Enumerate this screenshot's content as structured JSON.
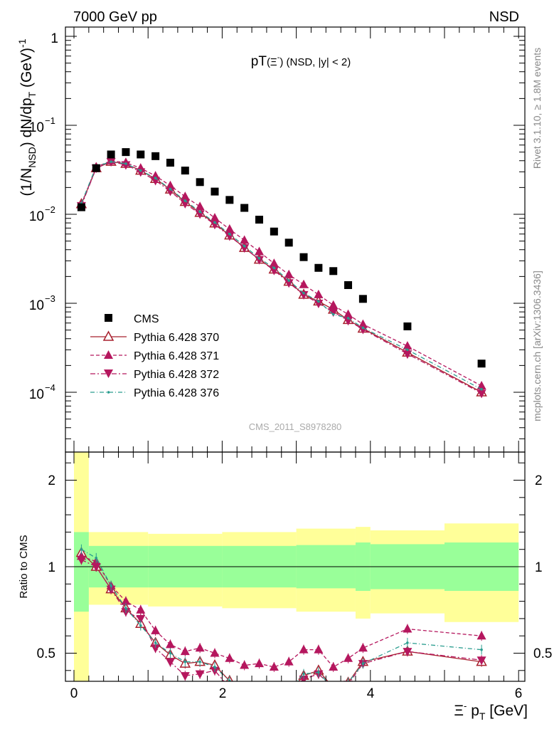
{
  "header": {
    "left": "7000 GeV pp",
    "right": "NSD"
  },
  "side_text": {
    "rivet": "Rivet 3.1.10, ≥ 1.8M events",
    "source": "mcplots.cern.ch [arXiv:1306.3436]"
  },
  "watermark": "CMS_2011_S8978280",
  "chart_data": [
    {
      "type": "scatter",
      "title": "pT(Ξ⁻) (NSD, |y| < 2)",
      "ylabel": "(1/N_NSD) dN/dp_T (GeV)^-1",
      "xlabel": "Ξ⁻ p_T [GeV]",
      "xlim": [
        -0.1,
        6.15
      ],
      "ylim": [
        2e-05,
        1.6
      ],
      "yscale": "log",
      "yticklabels": [
        "10^-4",
        "10^-3",
        "10^-2",
        "10^-1",
        "1"
      ],
      "legend": {
        "position": "left-middle",
        "entries": [
          "CMS",
          "Pythia 6.428 370",
          "Pythia 6.428 371",
          "Pythia 6.428 372",
          "Pythia 6.428 376"
        ]
      },
      "series": [
        {
          "name": "CMS",
          "color": "#000000",
          "marker": "square",
          "x": [
            0.1,
            0.3,
            0.5,
            0.7,
            0.9,
            1.1,
            1.3,
            1.5,
            1.7,
            1.9,
            2.1,
            2.3,
            2.5,
            2.7,
            2.9,
            3.1,
            3.3,
            3.5,
            3.7,
            3.9,
            4.5,
            5.5
          ],
          "y": [
            0.012,
            0.033,
            0.047,
            0.05,
            0.047,
            0.045,
            0.038,
            0.031,
            0.023,
            0.018,
            0.0145,
            0.0118,
            0.0087,
            0.0064,
            0.0048,
            0.0033,
            0.0025,
            0.0023,
            0.0016,
            0.00112,
            0.00055,
            0.00021
          ]
        },
        {
          "name": "Pythia 6.428 370",
          "color": "#a8202e",
          "marker": "triangle-open",
          "dash": "",
          "x": [
            0.1,
            0.3,
            0.5,
            0.7,
            0.9,
            1.1,
            1.3,
            1.5,
            1.7,
            1.9,
            2.1,
            2.3,
            2.5,
            2.7,
            2.9,
            3.1,
            3.3,
            3.5,
            3.7,
            3.9,
            4.5,
            5.5
          ],
          "y": [
            0.013,
            0.033,
            0.039,
            0.037,
            0.031,
            0.025,
            0.019,
            0.0138,
            0.0104,
            0.0079,
            0.0058,
            0.0042,
            0.0031,
            0.0024,
            0.00175,
            0.00125,
            0.00105,
            0.00085,
            0.00065,
            0.00052,
            0.00028,
            0.0001
          ]
        },
        {
          "name": "Pythia 6.428 371",
          "color": "#b5175e",
          "marker": "triangle-up",
          "dash": "5,3",
          "x": [
            0.1,
            0.3,
            0.5,
            0.7,
            0.9,
            1.1,
            1.3,
            1.5,
            1.7,
            1.9,
            2.1,
            2.3,
            2.5,
            2.7,
            2.9,
            3.1,
            3.3,
            3.5,
            3.7,
            3.9,
            4.5,
            5.5
          ],
          "y": [
            0.0128,
            0.034,
            0.04,
            0.038,
            0.033,
            0.027,
            0.021,
            0.0158,
            0.0122,
            0.0091,
            0.0068,
            0.0051,
            0.0038,
            0.0028,
            0.0021,
            0.00162,
            0.00125,
            0.00095,
            0.00075,
            0.00058,
            0.00033,
            0.000118
          ]
        },
        {
          "name": "Pythia 6.428 372",
          "color": "#b5175e",
          "marker": "triangle-down",
          "dash": "7,3,2,3",
          "x": [
            0.1,
            0.3,
            0.5,
            0.7,
            0.9,
            1.1,
            1.3,
            1.5,
            1.7,
            1.9,
            2.1,
            2.3,
            2.5,
            2.7,
            2.9,
            3.1,
            3.3,
            3.5,
            3.7,
            3.9,
            4.5,
            5.5
          ],
          "y": [
            0.0125,
            0.033,
            0.039,
            0.036,
            0.03,
            0.024,
            0.0182,
            0.0132,
            0.0101,
            0.0077,
            0.0057,
            0.0042,
            0.0031,
            0.00235,
            0.0017,
            0.00125,
            0.001,
            0.0008,
            0.00064,
            0.00051,
            0.00027,
            9.75e-05
          ]
        },
        {
          "name": "Pythia 6.428 376",
          "color": "#2a9d8f",
          "marker": "dot",
          "dash": "6,3,1,3",
          "x": [
            0.1,
            0.3,
            0.5,
            0.7,
            0.9,
            1.1,
            1.3,
            1.5,
            1.7,
            1.9,
            2.1,
            2.3,
            2.5,
            2.7,
            2.9,
            3.1,
            3.3,
            3.5,
            3.7,
            3.9,
            4.5,
            5.5
          ],
          "y": [
            0.0133,
            0.0345,
            0.039,
            0.037,
            0.031,
            0.0255,
            0.0192,
            0.0142,
            0.0107,
            0.0081,
            0.006,
            0.0044,
            0.0032,
            0.0025,
            0.0018,
            0.0013,
            0.00105,
            0.00075,
            0.00068,
            0.00053,
            0.0003,
            0.000108
          ]
        }
      ]
    },
    {
      "type": "scatter",
      "ylabel": "Ratio to CMS",
      "xlabel": "Ξ⁻ p_T [GeV]",
      "xlim": [
        -0.1,
        6.15
      ],
      "ylim": [
        0.34,
        2.35
      ],
      "xticklabels": [
        "0",
        "2",
        "4",
        "6"
      ],
      "yticklabels": [
        "0.5",
        "1",
        "2"
      ],
      "bands": [
        {
          "name": "stat",
          "color": "#99ff99",
          "edges": [
            0,
            0.2,
            1,
            2,
            3,
            3.8,
            4.0,
            5.0,
            6.0
          ],
          "lo": [
            0.74,
            0.88,
            0.88,
            0.88,
            0.875,
            0.86,
            0.87,
            0.86
          ],
          "hi": [
            1.2,
            1.12,
            1.12,
            1.12,
            1.125,
            1.14,
            1.13,
            1.14
          ]
        },
        {
          "name": "total",
          "color": "#ffff99",
          "edges": [
            0,
            0.2,
            1,
            2,
            3,
            3.8,
            4.0,
            5.0,
            6.0
          ],
          "lo": [
            0.33,
            0.78,
            0.77,
            0.76,
            0.74,
            0.7,
            0.73,
            0.68
          ],
          "hi": [
            1.7,
            1.2,
            1.19,
            1.2,
            1.22,
            1.23,
            1.21,
            1.25
          ]
        }
      ],
      "series": [
        {
          "name": "Pythia 6.428 370",
          "x": [
            0.1,
            0.3,
            0.5,
            0.7,
            0.9,
            1.1,
            1.3,
            1.5,
            1.7,
            1.9,
            2.1,
            2.3,
            2.5,
            2.7,
            2.9,
            3.1,
            3.3,
            3.5,
            3.7,
            3.9,
            4.5,
            5.5
          ],
          "y": [
            1.08,
            1.0,
            0.87,
            0.76,
            0.67,
            0.56,
            0.49,
            0.44,
            0.45,
            0.43,
            0.34,
            0.28,
            0.25,
            0.26,
            0.27,
            0.37,
            0.4,
            0.3,
            0.33,
            0.45,
            0.51,
            0.45
          ]
        },
        {
          "name": "Pythia 6.428 371",
          "x": [
            0.1,
            0.3,
            0.5,
            0.7,
            0.9,
            1.1,
            1.3,
            1.5,
            1.7,
            1.9,
            2.1,
            2.3,
            2.5,
            2.7,
            2.9,
            3.1,
            3.3,
            3.5,
            3.7,
            3.9,
            4.5,
            5.5
          ],
          "y": [
            1.06,
            1.03,
            0.89,
            0.8,
            0.75,
            0.63,
            0.55,
            0.51,
            0.53,
            0.5,
            0.47,
            0.43,
            0.44,
            0.42,
            0.45,
            0.52,
            0.52,
            0.42,
            0.47,
            0.53,
            0.64,
            0.6
          ]
        },
        {
          "name": "Pythia 6.428 372",
          "x": [
            0.1,
            0.3,
            0.5,
            0.7,
            0.9,
            1.1,
            1.3,
            1.5,
            1.7,
            1.9,
            2.1,
            2.3,
            2.5,
            2.7,
            2.9,
            3.1,
            3.3,
            3.5,
            3.7,
            3.9,
            4.5,
            5.5
          ],
          "y": [
            1.04,
            1.0,
            0.87,
            0.74,
            0.7,
            0.53,
            0.45,
            0.37,
            0.38,
            0.4,
            0.3,
            0.28,
            0.26,
            0.27,
            0.28,
            0.35,
            0.38,
            0.3,
            0.32,
            0.44,
            0.51,
            0.46
          ]
        },
        {
          "name": "Pythia 6.428 376",
          "x": [
            0.1,
            0.3,
            0.5,
            0.7,
            0.9,
            1.1,
            1.3,
            1.5,
            1.7,
            1.9,
            2.1,
            2.3,
            2.5,
            2.7,
            2.9,
            3.1,
            3.3,
            3.5,
            3.7,
            3.9,
            4.5,
            5.5
          ],
          "y": [
            1.1,
            1.05,
            0.89,
            0.76,
            0.66,
            0.56,
            0.5,
            0.45,
            0.45,
            0.42,
            0.34,
            0.28,
            0.26,
            0.27,
            0.28,
            0.38,
            0.39,
            0.29,
            0.33,
            0.44,
            0.56,
            0.52
          ]
        }
      ]
    }
  ]
}
